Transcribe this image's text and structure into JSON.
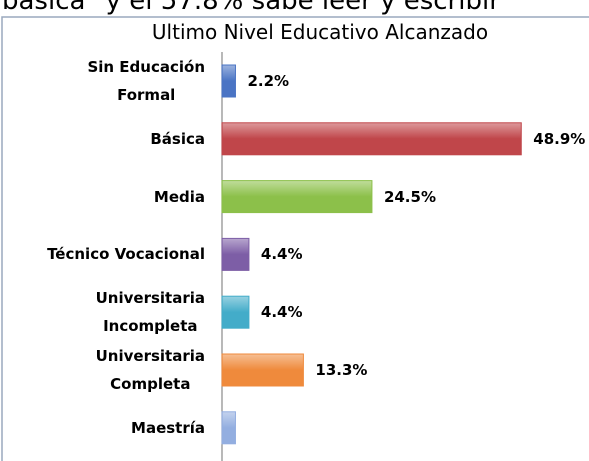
{
  "header_text": "básica\" y el 57.8% sabe leer y escribir",
  "chart_data": {
    "type": "bar",
    "orientation": "horizontal",
    "title": "Ultimo Nivel Educativo Alcanzado",
    "categories": [
      "Sin Educación\nFormal",
      "Básica",
      "Media",
      "Técnico Vocacional",
      "Universitaria\nIncompleta",
      "Universitaria\nCompleta",
      "Maestría"
    ],
    "values": [
      2.2,
      48.9,
      24.5,
      4.4,
      4.4,
      13.3,
      2.2
    ],
    "value_labels": [
      "2.2%",
      "48.9%",
      "24.5%",
      "4.4%",
      "4.4%",
      "13.3%",
      null
    ],
    "colors": [
      "#4a74c4",
      "#c0464a",
      "#8cc04a",
      "#7d5ea6",
      "#43acc9",
      "#ef8a3c",
      "#93aee0"
    ],
    "xlim": [
      0,
      50
    ]
  }
}
